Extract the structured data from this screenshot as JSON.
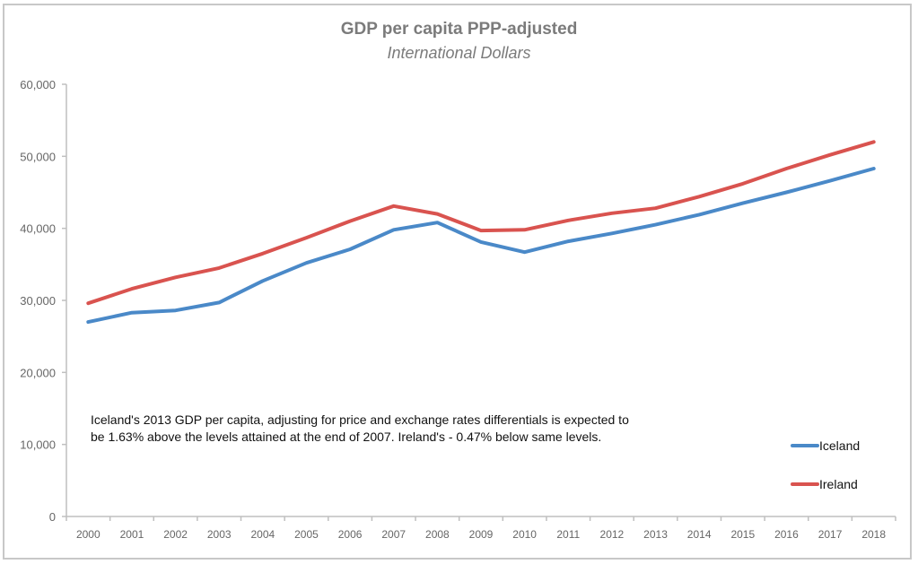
{
  "chart_data": {
    "type": "line",
    "title": "GDP per capita PPP-adjusted",
    "subtitle": "International Dollars",
    "xlabel": "",
    "ylabel": "",
    "ylim": [
      0,
      60000
    ],
    "yticks": [
      0,
      10000,
      20000,
      30000,
      40000,
      50000,
      60000
    ],
    "ytick_labels": [
      "0",
      "10,000",
      "20,000",
      "30,000",
      "40,000",
      "50,000",
      "60,000"
    ],
    "grid": false,
    "legend_position": "bottom-right",
    "x": [
      "2000",
      "2001",
      "2002",
      "2003",
      "2004",
      "2005",
      "2006",
      "2007",
      "2008",
      "2009",
      "2010",
      "2011",
      "2012",
      "2013",
      "2014",
      "2015",
      "2016",
      "2017",
      "2018"
    ],
    "series": [
      {
        "name": "Iceland",
        "color": "#4a89c8",
        "values": [
          27000,
          28300,
          28600,
          29700,
          32700,
          35200,
          37100,
          39800,
          40800,
          38100,
          36700,
          38200,
          39300,
          40500,
          41900,
          43500,
          45000,
          46600,
          48300
        ]
      },
      {
        "name": "Ireland",
        "color": "#d9534f",
        "values": [
          29600,
          31600,
          33200,
          34500,
          36500,
          38700,
          41000,
          43100,
          42000,
          39700,
          39800,
          41100,
          42100,
          42800,
          44400,
          46200,
          48300,
          50200,
          52000
        ]
      }
    ],
    "annotation": "Iceland's 2013 GDP per capita, adjusting for price and exchange rates differentials is expected to be 1.63% above the levels attained at the end of 2007. Ireland's - 0.47% below same levels."
  },
  "colors": {
    "axis": "#bfbfbf",
    "frame": "#c8c8c8",
    "title": "#7b7b7b"
  }
}
